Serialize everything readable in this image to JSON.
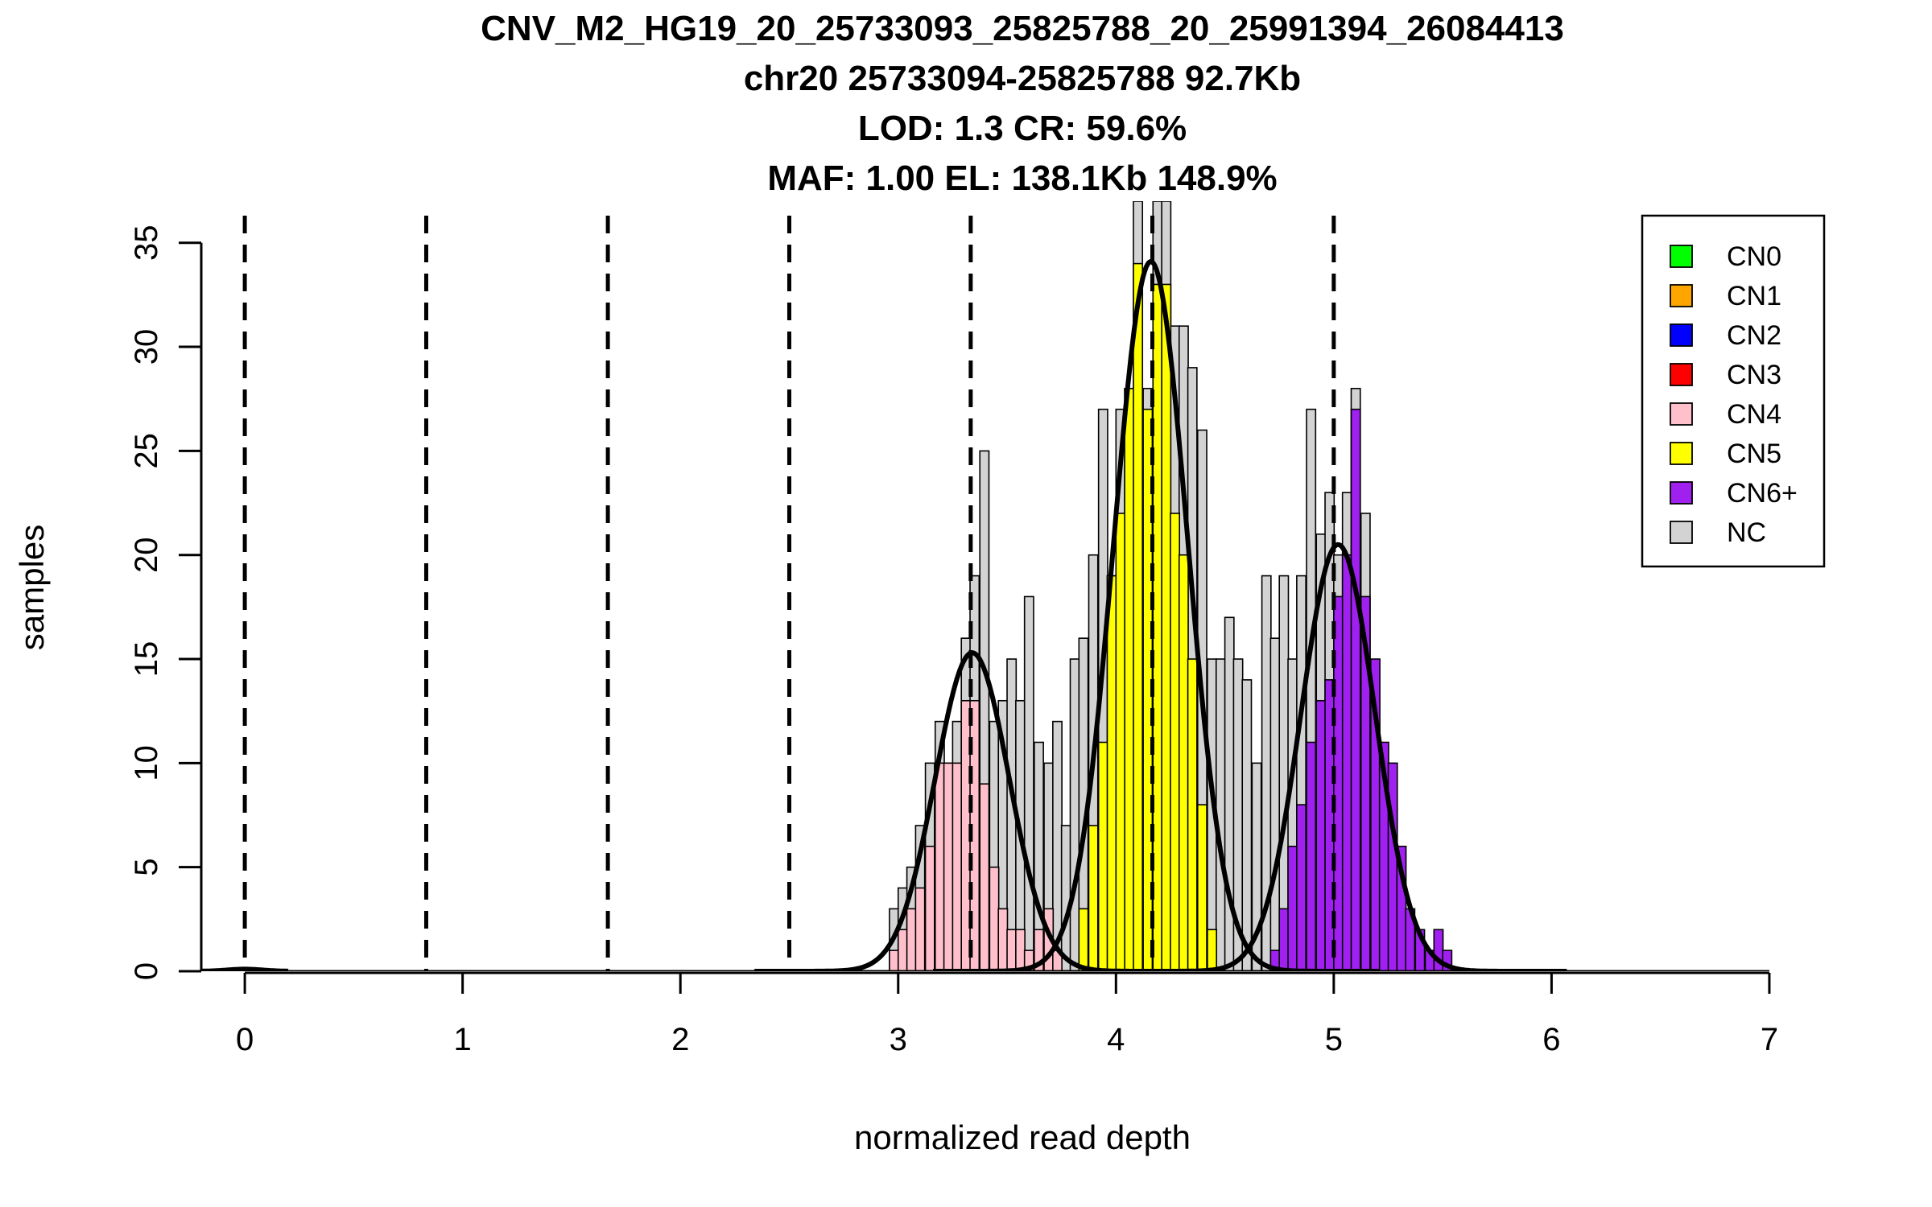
{
  "chart_data": {
    "type": "bar",
    "title_lines": [
      "CNV_M2_HG19_20_25733093_25825788_20_25991394_26084413",
      "chr20 25733094-25825788 92.7Kb",
      "LOD: 1.3 CR: 59.6%",
      "MAF: 1.00 EL: 138.1Kb 148.9%"
    ],
    "xlabel": "normalized read depth",
    "ylabel": "samples",
    "xlim": [
      -0.2,
      7.1
    ],
    "ylim": [
      0,
      37
    ],
    "xticks": [
      0,
      1,
      2,
      3,
      4,
      5,
      6,
      7
    ],
    "xtick_labels": [
      "0",
      "1",
      "2",
      "3",
      "4",
      "5",
      "6",
      "7"
    ],
    "yticks": [
      0,
      5,
      10,
      15,
      20,
      25,
      30,
      35
    ],
    "ytick_labels": [
      "0",
      "5",
      "10",
      "15",
      "20",
      "25",
      "30",
      "35"
    ],
    "bin_width": 0.0417,
    "colors": {
      "CN0": "#00ff00",
      "CN1": "#ffa500",
      "CN2": "#0000ff",
      "CN3": "#ff0000",
      "CN4": "#ffc0cb",
      "CN5": "#ffff00",
      "CN6+": "#a020f0",
      "NC": "#d3d3d3"
    },
    "legend": {
      "position": "top-right",
      "entries": [
        "CN0",
        "CN1",
        "CN2",
        "CN3",
        "CN4",
        "CN5",
        "CN6+",
        "NC"
      ]
    },
    "series": [
      {
        "name": "NC",
        "bins": [
          [
            2.96,
            3
          ],
          [
            3.0,
            4
          ],
          [
            3.04,
            5
          ],
          [
            3.08,
            7
          ],
          [
            3.125,
            10
          ],
          [
            3.17,
            12
          ],
          [
            3.21,
            10
          ],
          [
            3.25,
            12
          ],
          [
            3.29,
            16
          ],
          [
            3.33,
            19
          ],
          [
            3.375,
            25
          ],
          [
            3.42,
            12
          ],
          [
            3.46,
            13
          ],
          [
            3.5,
            15
          ],
          [
            3.54,
            13
          ],
          [
            3.58,
            18
          ],
          [
            3.625,
            11
          ],
          [
            3.67,
            10
          ],
          [
            3.71,
            12
          ],
          [
            3.75,
            7
          ],
          [
            3.79,
            15
          ],
          [
            3.83,
            16
          ],
          [
            3.875,
            20
          ],
          [
            3.92,
            27
          ],
          [
            3.96,
            19
          ],
          [
            4.0,
            27
          ],
          [
            4.04,
            28
          ],
          [
            4.08,
            37
          ],
          [
            4.125,
            28
          ],
          [
            4.17,
            37
          ],
          [
            4.21,
            37
          ],
          [
            4.25,
            31
          ],
          [
            4.29,
            31
          ],
          [
            4.33,
            29
          ],
          [
            4.375,
            26
          ],
          [
            4.42,
            15
          ],
          [
            4.46,
            15
          ],
          [
            4.5,
            17
          ],
          [
            4.54,
            15
          ],
          [
            4.58,
            14
          ],
          [
            4.625,
            10
          ],
          [
            4.67,
            19
          ],
          [
            4.71,
            16
          ],
          [
            4.75,
            19
          ],
          [
            4.79,
            15
          ],
          [
            4.83,
            19
          ],
          [
            4.875,
            27
          ],
          [
            4.92,
            21
          ],
          [
            4.96,
            23
          ],
          [
            5.0,
            20
          ],
          [
            5.04,
            23
          ],
          [
            5.08,
            28
          ],
          [
            5.125,
            22
          ]
        ]
      },
      {
        "name": "CN4",
        "bins": [
          [
            2.96,
            1
          ],
          [
            3.0,
            2
          ],
          [
            3.04,
            3
          ],
          [
            3.08,
            4
          ],
          [
            3.125,
            6
          ],
          [
            3.17,
            10
          ],
          [
            3.21,
            10
          ],
          [
            3.25,
            10
          ],
          [
            3.29,
            13
          ],
          [
            3.33,
            13
          ],
          [
            3.375,
            9
          ],
          [
            3.42,
            5
          ],
          [
            3.46,
            3
          ],
          [
            3.5,
            2
          ],
          [
            3.54,
            2
          ],
          [
            3.58,
            1
          ],
          [
            3.625,
            2
          ],
          [
            3.67,
            3
          ],
          [
            3.71,
            1
          ]
        ]
      },
      {
        "name": "CN5",
        "bins": [
          [
            3.83,
            3
          ],
          [
            3.875,
            7
          ],
          [
            3.92,
            11
          ],
          [
            3.96,
            19
          ],
          [
            4.0,
            22
          ],
          [
            4.04,
            28
          ],
          [
            4.08,
            34
          ],
          [
            4.125,
            27
          ],
          [
            4.17,
            33
          ],
          [
            4.21,
            33
          ],
          [
            4.25,
            22
          ],
          [
            4.29,
            20
          ],
          [
            4.33,
            15
          ],
          [
            4.375,
            8
          ],
          [
            4.42,
            2
          ]
        ]
      },
      {
        "name": "CN6+",
        "bins": [
          [
            4.71,
            1
          ],
          [
            4.75,
            3
          ],
          [
            4.79,
            6
          ],
          [
            4.83,
            8
          ],
          [
            4.875,
            11
          ],
          [
            4.92,
            13
          ],
          [
            4.96,
            14
          ],
          [
            5.0,
            18
          ],
          [
            5.04,
            20
          ],
          [
            5.08,
            27
          ],
          [
            5.125,
            18
          ],
          [
            5.17,
            15
          ],
          [
            5.21,
            11
          ],
          [
            5.25,
            10
          ],
          [
            5.29,
            6
          ],
          [
            5.33,
            3
          ],
          [
            5.375,
            2
          ],
          [
            5.42,
            1
          ],
          [
            5.46,
            2
          ],
          [
            5.5,
            1
          ]
        ]
      }
    ],
    "vlines": [
      0,
      0.833,
      1.667,
      2.5,
      3.333,
      4.167,
      5.0
    ],
    "density_curves": [
      {
        "mean": 0,
        "sd": 0.08,
        "peak": 0.1
      },
      {
        "mean": 3.34,
        "sd": 0.17,
        "peak": 15.3
      },
      {
        "mean": 4.16,
        "sd": 0.17,
        "peak": 34.1
      },
      {
        "mean": 5.02,
        "sd": 0.17,
        "peak": 20.5
      }
    ]
  }
}
